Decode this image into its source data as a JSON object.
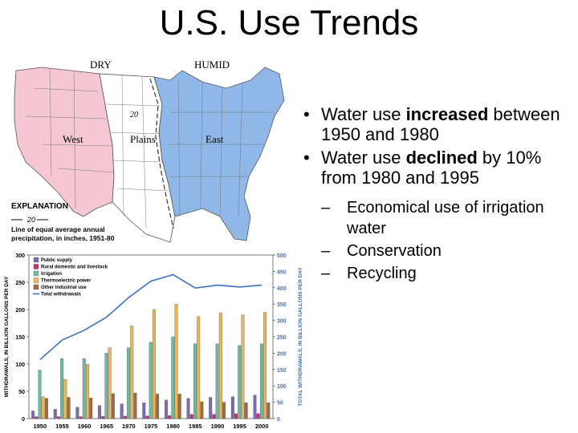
{
  "slide": {
    "title": "U.S. Use Trends",
    "bullets": [
      {
        "pre": "Water use ",
        "bold": "increased",
        "post": " between 1950 and 1980"
      },
      {
        "pre": "Water use ",
        "bold": "declined",
        "post": " by 10% from 1980 and 1995"
      }
    ],
    "sub_bullets": [
      "Economical use of irrigation water",
      "Conservation",
      "Recycling"
    ]
  },
  "map": {
    "label_dry": "DRY",
    "label_humid": "HUMID",
    "label_west": "West",
    "label_plains": "Plains",
    "label_east": "East",
    "isoline_value": "20",
    "explanation_title": "EXPLANATION",
    "explanation_line_value": "20",
    "explanation_text_1": "Line of equal average annual",
    "explanation_text_2": "precipitation, in inches, 1951-80",
    "colors": {
      "dry": "#f5c6d3",
      "humid": "#8fb8e8",
      "plains": "#ffffff",
      "border": "#555555"
    }
  },
  "chart_data": {
    "type": "bar",
    "categories": [
      "1950",
      "1955",
      "1960",
      "1965",
      "1970",
      "1975",
      "1980",
      "1985",
      "1990",
      "1995",
      "2000"
    ],
    "ylabel": "WITHDRAWALS, IN BILLION GALLONS PER DAY",
    "ylabel_right": "TOTAL WITHDRAWALS, IN BILLION GALLONS PER DAY",
    "ylim": [
      0,
      300
    ],
    "yticks": [
      "0",
      "50",
      "100",
      "150",
      "200",
      "250",
      "300"
    ],
    "ylim_right": [
      0,
      500
    ],
    "yticks_right": [
      "0",
      "50",
      "100",
      "150",
      "200",
      "250",
      "300",
      "350",
      "400",
      "450",
      "500"
    ],
    "legend_placement": "top-left",
    "series": [
      {
        "name": "Public supply",
        "color": "#7b6bb0",
        "values": [
          14,
          17,
          21,
          24,
          27,
          29,
          34,
          37,
          39,
          40,
          43
        ]
      },
      {
        "name": "Rural domestic and livestock",
        "color": "#c8307a",
        "values": [
          3.6,
          3.6,
          3.6,
          4.0,
          4.5,
          4.9,
          5.6,
          7.8,
          7.9,
          8.9,
          9.2
        ]
      },
      {
        "name": "Irrigation",
        "color": "#6fb8a4",
        "values": [
          89,
          110,
          110,
          120,
          130,
          140,
          150,
          137,
          137,
          134,
          137
        ]
      },
      {
        "name": "Thermoelectric power",
        "color": "#e8b657",
        "values": [
          40,
          72,
          100,
          130,
          170,
          200,
          210,
          187,
          194,
          190,
          195
        ]
      },
      {
        "name": "Other industrial use",
        "color": "#a06a42",
        "values": [
          37,
          39,
          38,
          46,
          47,
          45,
          45,
          31,
          30,
          29,
          29
        ]
      }
    ],
    "total": {
      "name": "Total withdrawals",
      "color": "#3b6fc6",
      "values": [
        180,
        240,
        270,
        310,
        370,
        420,
        440,
        399,
        408,
        402,
        408
      ]
    }
  }
}
